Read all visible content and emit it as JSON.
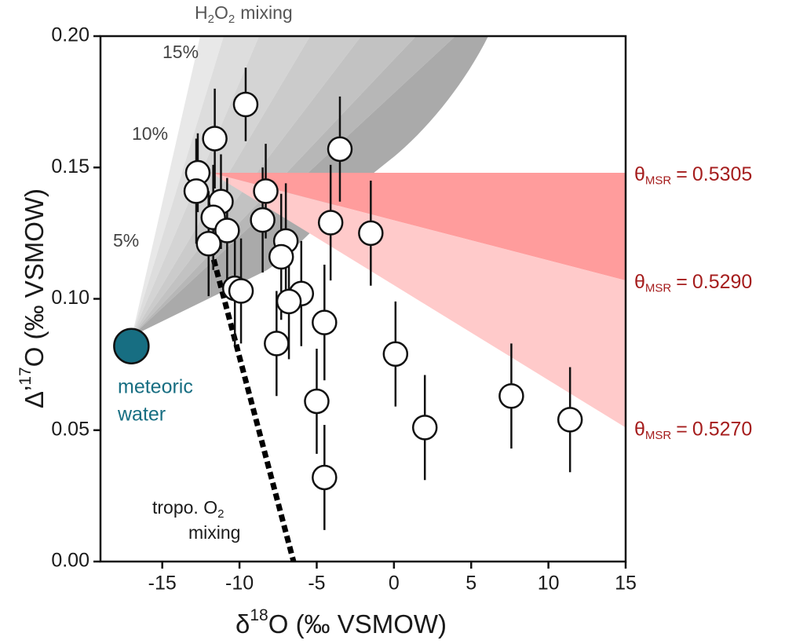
{
  "chart_data": {
    "type": "scatter",
    "xlim": [
      -19,
      15
    ],
    "ylim": [
      0,
      0.2
    ],
    "xticks": [
      -15,
      -10,
      -5,
      0,
      5,
      10,
      15
    ],
    "yticks": [
      {
        "value": 0,
        "label": "0.00"
      },
      {
        "value": 0.05,
        "label": "0.05"
      },
      {
        "value": 0.1,
        "label": "0.10"
      },
      {
        "value": 0.15,
        "label": "0.15"
      },
      {
        "value": 0.2,
        "label": "0.20"
      }
    ],
    "x_label": [
      "δ",
      "18",
      "O (‰ VSMOW)"
    ],
    "y_label": [
      "Δ’",
      "17",
      "O (‰ VSMOW)"
    ],
    "series": [
      {
        "color": "#ffffff",
        "x": [
          -9.6,
          -11.6,
          -12.7,
          -12.8,
          -11.2,
          -11.7,
          -10.8,
          -12.0,
          -10.3,
          -9.9,
          -8.3,
          -8.5,
          -3.5,
          -4.1,
          -1.5,
          -7.0,
          -7.3,
          -6.0,
          -6.8,
          -7.6,
          -4.5,
          -5.0,
          -4.5,
          0.1,
          2.0,
          7.6,
          11.4
        ],
        "values": [
          0.174,
          0.161,
          0.148,
          0.141,
          0.137,
          0.131,
          0.126,
          0.121,
          0.104,
          0.103,
          0.141,
          0.13,
          0.157,
          0.129,
          0.125,
          0.122,
          0.116,
          0.102,
          0.099,
          0.083,
          0.091,
          0.061,
          0.032,
          0.079,
          0.051,
          0.063,
          0.054
        ],
        "errors": [
          0.014,
          0.019,
          0.015,
          0.02,
          0.018,
          0.02,
          0.02,
          0.02,
          0.022,
          0.02,
          0.018,
          0.02,
          0.02,
          0.022,
          0.02,
          0.022,
          0.024,
          0.02,
          0.022,
          0.02,
          0.022,
          0.02,
          0.02,
          0.02,
          0.02,
          0.02,
          0.02
        ]
      }
    ],
    "meteoric_water": {
      "x": -17,
      "y": 0.082,
      "color": "#176e82",
      "label": [
        "meteoric",
        "water"
      ]
    },
    "tropo_line": {
      "x": [
        -11.85,
        -6.5
      ],
      "y": [
        0.119,
        0
      ],
      "label": [
        "tropo. O",
        "2",
        "mixing"
      ]
    },
    "theta_lines": {
      "symbol": "θ",
      "sub": "MSR",
      "eq": "=",
      "x_start": -11.85,
      "y_start": 0.148,
      "colors": [
        "#ff9c9c",
        "#ffcaca"
      ],
      "text_color": "#a51d1d",
      "lines": [
        {
          "value": 0.5305,
          "label": "0.5305",
          "y_end": 0.148
        },
        {
          "value": 0.529,
          "label": "0.5290",
          "y_end": 0.107
        },
        {
          "value": 0.527,
          "label": "0.5270",
          "y_end": 0.051
        }
      ]
    },
    "h2o2": {
      "title": [
        "H",
        "2",
        "O",
        "2",
        "mixing"
      ],
      "percent_labels": [
        "15%",
        "10%",
        "5%"
      ]
    }
  }
}
